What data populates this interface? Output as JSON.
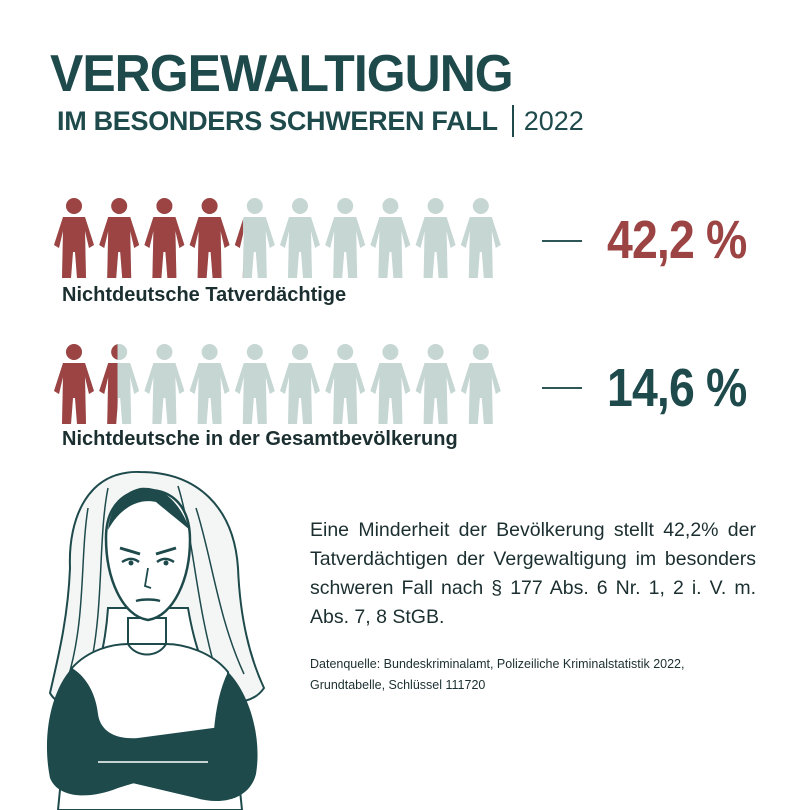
{
  "header": {
    "title": "VERGEWALTIGUNG",
    "subtitle": "IM BESONDERS SCHWEREN FALL",
    "year": "2022"
  },
  "colors": {
    "dark_teal": "#1e4a4c",
    "highlight": "#9b4443",
    "icon_inactive": "#c5d6d3"
  },
  "chart_data": {
    "type": "pictograph",
    "icons_total": 10,
    "series": [
      {
        "name": "Nichtdeutsche Tatverdächtige",
        "value": 42.2,
        "value_label": "42,2 %",
        "color": "#9b4443"
      },
      {
        "name": "Nichtdeutsche in der Gesamtbevölkerung",
        "value": 14.6,
        "value_label": "14,6 %",
        "color": "#1e4a4c"
      }
    ]
  },
  "text": {
    "description": "Eine Minderheit der Bevölkerung stellt 42,2% der Tatverdächtigen der Vergewaltigung im besonders schweren Fall nach § 177 Abs. 6 Nr. 1, 2 i. V. m. Abs. 7, 8 StGB.",
    "source": "Datenquelle: Bundeskriminalamt, Polizeiliche Kriminalstatistik 2022, Grundtabelle, Schlüssel 111720"
  },
  "illustration": {
    "icon": "woman-arms-crossed-illustration"
  }
}
